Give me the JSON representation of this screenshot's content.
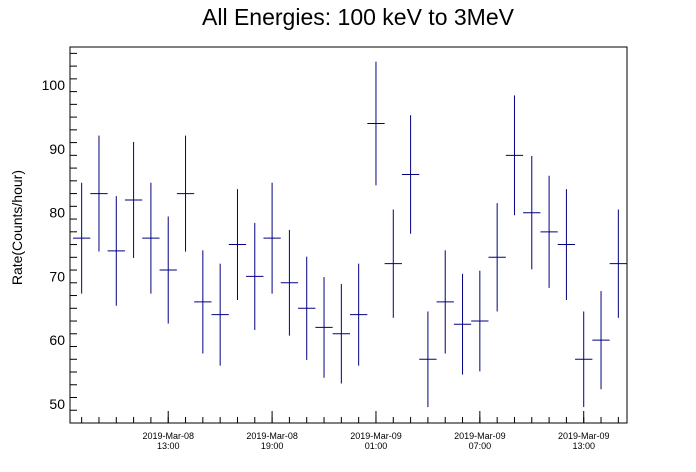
{
  "chart_data": {
    "type": "scatter",
    "title": "All Energies:  100 keV to 3MeV",
    "xlabel": "",
    "ylabel": "Rate(Counts/hour)",
    "ylim": [
      47,
      106
    ],
    "yticks": [
      50,
      60,
      70,
      80,
      90,
      100
    ],
    "xticks": [
      {
        "line1": "2019-Mar-08",
        "line2": "13:00"
      },
      {
        "line1": "2019-Mar-08",
        "line2": "19:00"
      },
      {
        "line1": "2019-Mar-09",
        "line2": "01:00"
      },
      {
        "line1": "2019-Mar-09",
        "line2": "07:00"
      },
      {
        "line1": "2019-Mar-09",
        "line2": "13:00"
      }
    ],
    "series": [
      {
        "color": "#000080",
        "bin_width_hours": 1,
        "points": [
          {
            "t": "2019-Mar-08 08:00",
            "y": 76,
            "err": 8.7
          },
          {
            "t": "2019-Mar-08 09:00",
            "y": 83,
            "err": 9.1
          },
          {
            "t": "2019-Mar-08 10:00",
            "y": 74,
            "err": 8.6
          },
          {
            "t": "2019-Mar-08 11:00",
            "y": 82,
            "err": 9.1
          },
          {
            "t": "2019-Mar-08 12:00",
            "y": 76,
            "err": 8.7
          },
          {
            "t": "2019-Mar-08 13:00",
            "y": 71,
            "err": 8.4
          },
          {
            "t": "2019-Mar-08 14:00",
            "y": 83,
            "err": 9.1
          },
          {
            "t": "2019-Mar-08 15:00",
            "y": 66,
            "err": 8.1
          },
          {
            "t": "2019-Mar-08 16:00",
            "y": 64,
            "err": 8.0
          },
          {
            "t": "2019-Mar-08 17:00",
            "y": 75,
            "err": 8.7
          },
          {
            "t": "2019-Mar-08 18:00",
            "y": 70,
            "err": 8.4
          },
          {
            "t": "2019-Mar-08 19:00",
            "y": 76,
            "err": 8.7
          },
          {
            "t": "2019-Mar-08 20:00",
            "y": 69,
            "err": 8.3
          },
          {
            "t": "2019-Mar-08 21:00",
            "y": 65,
            "err": 8.1
          },
          {
            "t": "2019-Mar-08 22:00",
            "y": 62,
            "err": 7.9
          },
          {
            "t": "2019-Mar-08 23:00",
            "y": 61,
            "err": 7.8
          },
          {
            "t": "2019-Mar-09 00:00",
            "y": 64,
            "err": 8.0
          },
          {
            "t": "2019-Mar-09 01:00",
            "y": 94,
            "err": 9.7
          },
          {
            "t": "2019-Mar-09 02:00",
            "y": 72,
            "err": 8.5
          },
          {
            "t": "2019-Mar-09 03:00",
            "y": 86,
            "err": 9.3
          },
          {
            "t": "2019-Mar-09 04:00",
            "y": 57,
            "err": 7.5
          },
          {
            "t": "2019-Mar-09 05:00",
            "y": 66,
            "err": 8.1
          },
          {
            "t": "2019-Mar-09 06:00",
            "y": 62.5,
            "err": 7.9
          },
          {
            "t": "2019-Mar-09 07:00",
            "y": 63,
            "err": 7.9
          },
          {
            "t": "2019-Mar-09 08:00",
            "y": 73,
            "err": 8.5
          },
          {
            "t": "2019-Mar-09 09:00",
            "y": 89,
            "err": 9.4
          },
          {
            "t": "2019-Mar-09 10:00",
            "y": 80,
            "err": 8.9
          },
          {
            "t": "2019-Mar-09 11:00",
            "y": 77,
            "err": 8.8
          },
          {
            "t": "2019-Mar-09 12:00",
            "y": 75,
            "err": 8.7
          },
          {
            "t": "2019-Mar-09 13:00",
            "y": 57,
            "err": 7.5
          },
          {
            "t": "2019-Mar-09 14:00",
            "y": 60,
            "err": 7.7
          },
          {
            "t": "2019-Mar-09 15:00",
            "y": 72,
            "err": 8.5
          }
        ]
      }
    ],
    "grid": false,
    "legend": "none"
  }
}
